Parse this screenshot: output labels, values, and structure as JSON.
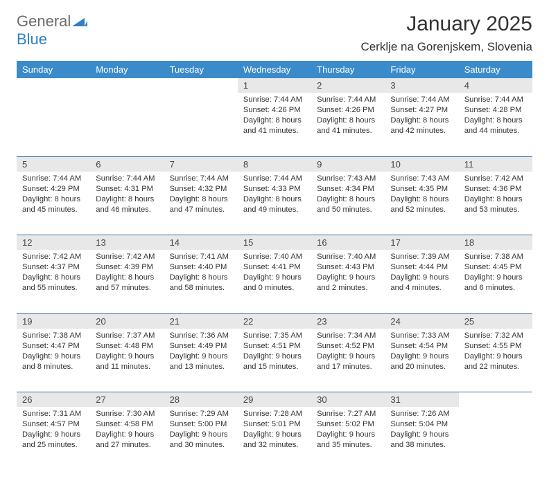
{
  "logo": {
    "word1": "General",
    "word2": "Blue",
    "color_general": "#6b6b6b",
    "color_blue": "#2f7fc2"
  },
  "title": "January 2025",
  "location": "Cerklje na Gorenjskem, Slovenia",
  "colors": {
    "header_bg": "#3b8bca",
    "header_text": "#ffffff",
    "daynum_bg": "#e8e8e8",
    "row_divider": "#2f6fa8",
    "text": "#333333"
  },
  "day_headers": [
    "Sunday",
    "Monday",
    "Tuesday",
    "Wednesday",
    "Thursday",
    "Friday",
    "Saturday"
  ],
  "weeks": [
    [
      null,
      null,
      null,
      {
        "n": "1",
        "sr": "Sunrise: 7:44 AM",
        "ss": "Sunset: 4:26 PM",
        "d1": "Daylight: 8 hours",
        "d2": "and 41 minutes."
      },
      {
        "n": "2",
        "sr": "Sunrise: 7:44 AM",
        "ss": "Sunset: 4:26 PM",
        "d1": "Daylight: 8 hours",
        "d2": "and 41 minutes."
      },
      {
        "n": "3",
        "sr": "Sunrise: 7:44 AM",
        "ss": "Sunset: 4:27 PM",
        "d1": "Daylight: 8 hours",
        "d2": "and 42 minutes."
      },
      {
        "n": "4",
        "sr": "Sunrise: 7:44 AM",
        "ss": "Sunset: 4:28 PM",
        "d1": "Daylight: 8 hours",
        "d2": "and 44 minutes."
      }
    ],
    [
      {
        "n": "5",
        "sr": "Sunrise: 7:44 AM",
        "ss": "Sunset: 4:29 PM",
        "d1": "Daylight: 8 hours",
        "d2": "and 45 minutes."
      },
      {
        "n": "6",
        "sr": "Sunrise: 7:44 AM",
        "ss": "Sunset: 4:31 PM",
        "d1": "Daylight: 8 hours",
        "d2": "and 46 minutes."
      },
      {
        "n": "7",
        "sr": "Sunrise: 7:44 AM",
        "ss": "Sunset: 4:32 PM",
        "d1": "Daylight: 8 hours",
        "d2": "and 47 minutes."
      },
      {
        "n": "8",
        "sr": "Sunrise: 7:44 AM",
        "ss": "Sunset: 4:33 PM",
        "d1": "Daylight: 8 hours",
        "d2": "and 49 minutes."
      },
      {
        "n": "9",
        "sr": "Sunrise: 7:43 AM",
        "ss": "Sunset: 4:34 PM",
        "d1": "Daylight: 8 hours",
        "d2": "and 50 minutes."
      },
      {
        "n": "10",
        "sr": "Sunrise: 7:43 AM",
        "ss": "Sunset: 4:35 PM",
        "d1": "Daylight: 8 hours",
        "d2": "and 52 minutes."
      },
      {
        "n": "11",
        "sr": "Sunrise: 7:42 AM",
        "ss": "Sunset: 4:36 PM",
        "d1": "Daylight: 8 hours",
        "d2": "and 53 minutes."
      }
    ],
    [
      {
        "n": "12",
        "sr": "Sunrise: 7:42 AM",
        "ss": "Sunset: 4:37 PM",
        "d1": "Daylight: 8 hours",
        "d2": "and 55 minutes."
      },
      {
        "n": "13",
        "sr": "Sunrise: 7:42 AM",
        "ss": "Sunset: 4:39 PM",
        "d1": "Daylight: 8 hours",
        "d2": "and 57 minutes."
      },
      {
        "n": "14",
        "sr": "Sunrise: 7:41 AM",
        "ss": "Sunset: 4:40 PM",
        "d1": "Daylight: 8 hours",
        "d2": "and 58 minutes."
      },
      {
        "n": "15",
        "sr": "Sunrise: 7:40 AM",
        "ss": "Sunset: 4:41 PM",
        "d1": "Daylight: 9 hours",
        "d2": "and 0 minutes."
      },
      {
        "n": "16",
        "sr": "Sunrise: 7:40 AM",
        "ss": "Sunset: 4:43 PM",
        "d1": "Daylight: 9 hours",
        "d2": "and 2 minutes."
      },
      {
        "n": "17",
        "sr": "Sunrise: 7:39 AM",
        "ss": "Sunset: 4:44 PM",
        "d1": "Daylight: 9 hours",
        "d2": "and 4 minutes."
      },
      {
        "n": "18",
        "sr": "Sunrise: 7:38 AM",
        "ss": "Sunset: 4:45 PM",
        "d1": "Daylight: 9 hours",
        "d2": "and 6 minutes."
      }
    ],
    [
      {
        "n": "19",
        "sr": "Sunrise: 7:38 AM",
        "ss": "Sunset: 4:47 PM",
        "d1": "Daylight: 9 hours",
        "d2": "and 8 minutes."
      },
      {
        "n": "20",
        "sr": "Sunrise: 7:37 AM",
        "ss": "Sunset: 4:48 PM",
        "d1": "Daylight: 9 hours",
        "d2": "and 11 minutes."
      },
      {
        "n": "21",
        "sr": "Sunrise: 7:36 AM",
        "ss": "Sunset: 4:49 PM",
        "d1": "Daylight: 9 hours",
        "d2": "and 13 minutes."
      },
      {
        "n": "22",
        "sr": "Sunrise: 7:35 AM",
        "ss": "Sunset: 4:51 PM",
        "d1": "Daylight: 9 hours",
        "d2": "and 15 minutes."
      },
      {
        "n": "23",
        "sr": "Sunrise: 7:34 AM",
        "ss": "Sunset: 4:52 PM",
        "d1": "Daylight: 9 hours",
        "d2": "and 17 minutes."
      },
      {
        "n": "24",
        "sr": "Sunrise: 7:33 AM",
        "ss": "Sunset: 4:54 PM",
        "d1": "Daylight: 9 hours",
        "d2": "and 20 minutes."
      },
      {
        "n": "25",
        "sr": "Sunrise: 7:32 AM",
        "ss": "Sunset: 4:55 PM",
        "d1": "Daylight: 9 hours",
        "d2": "and 22 minutes."
      }
    ],
    [
      {
        "n": "26",
        "sr": "Sunrise: 7:31 AM",
        "ss": "Sunset: 4:57 PM",
        "d1": "Daylight: 9 hours",
        "d2": "and 25 minutes."
      },
      {
        "n": "27",
        "sr": "Sunrise: 7:30 AM",
        "ss": "Sunset: 4:58 PM",
        "d1": "Daylight: 9 hours",
        "d2": "and 27 minutes."
      },
      {
        "n": "28",
        "sr": "Sunrise: 7:29 AM",
        "ss": "Sunset: 5:00 PM",
        "d1": "Daylight: 9 hours",
        "d2": "and 30 minutes."
      },
      {
        "n": "29",
        "sr": "Sunrise: 7:28 AM",
        "ss": "Sunset: 5:01 PM",
        "d1": "Daylight: 9 hours",
        "d2": "and 32 minutes."
      },
      {
        "n": "30",
        "sr": "Sunrise: 7:27 AM",
        "ss": "Sunset: 5:02 PM",
        "d1": "Daylight: 9 hours",
        "d2": "and 35 minutes."
      },
      {
        "n": "31",
        "sr": "Sunrise: 7:26 AM",
        "ss": "Sunset: 5:04 PM",
        "d1": "Daylight: 9 hours",
        "d2": "and 38 minutes."
      },
      null
    ]
  ]
}
